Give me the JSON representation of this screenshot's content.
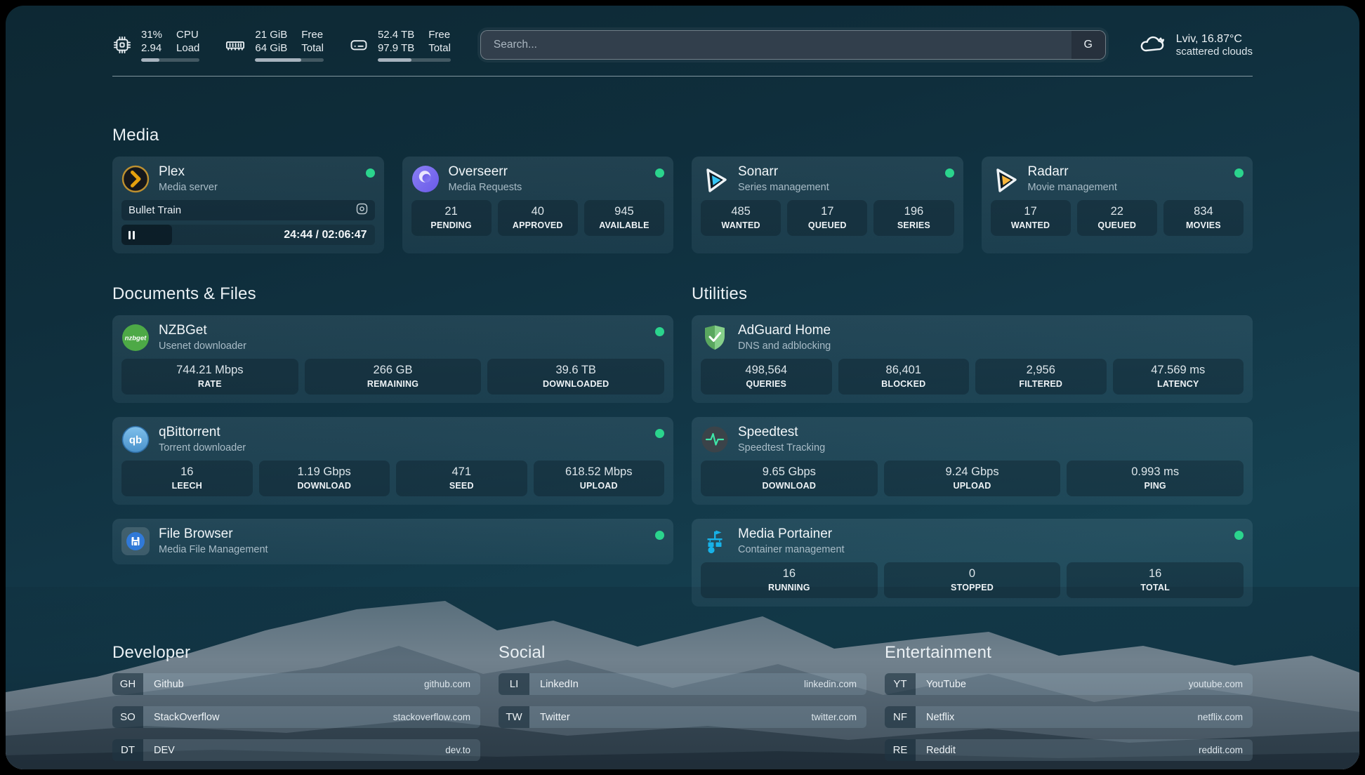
{
  "topbar": {
    "resources": [
      {
        "icon": "cpu-icon",
        "lines_a": [
          "31%",
          "2.94"
        ],
        "lines_b": [
          "CPU",
          "Load"
        ],
        "bar_percent": 31
      },
      {
        "icon": "memory-icon",
        "lines_a": [
          "21 GiB",
          "64 GiB"
        ],
        "lines_b": [
          "Free",
          "Total"
        ],
        "bar_percent": 67
      },
      {
        "icon": "disk-icon",
        "lines_a": [
          "52.4 TB",
          "97.9 TB"
        ],
        "lines_b": [
          "Free",
          "Total"
        ],
        "bar_percent": 46
      }
    ],
    "search": {
      "placeholder": "Search...",
      "provider_button": "G"
    },
    "weather": {
      "icon": "cloud-icon",
      "location": "Lviv, 16.87°C",
      "condition": "scattered clouds"
    }
  },
  "colors": {
    "status_online": "#2bd48d",
    "plex": "#e5a00d",
    "overseerr": "#7b6ef6",
    "sonarr": "#35c5f4",
    "radarr": "#f8b63c",
    "nzbget": "#4da946",
    "qbittorrent": "#5da9dd",
    "adguard": "#6cbc74",
    "speedtest": "#3ee6a8",
    "filebrowser": "#3079d8",
    "portainer": "#17b2e8"
  },
  "sections": {
    "media": {
      "title": "Media",
      "cards": [
        {
          "name": "Plex",
          "description": "Media server",
          "icon": "plex-icon",
          "status": "online",
          "now_playing": {
            "title": "Bullet Train",
            "time": "24:44 / 02:06:47",
            "progress_percent": 20
          }
        },
        {
          "name": "Overseerr",
          "description": "Media Requests",
          "icon": "overseerr-icon",
          "status": "online",
          "stats": [
            {
              "value": "21",
              "label": "PENDING"
            },
            {
              "value": "40",
              "label": "APPROVED"
            },
            {
              "value": "945",
              "label": "AVAILABLE"
            }
          ]
        },
        {
          "name": "Sonarr",
          "description": "Series management",
          "icon": "sonarr-icon",
          "status": "online",
          "stats": [
            {
              "value": "485",
              "label": "WANTED"
            },
            {
              "value": "17",
              "label": "QUEUED"
            },
            {
              "value": "196",
              "label": "SERIES"
            }
          ]
        },
        {
          "name": "Radarr",
          "description": "Movie management",
          "icon": "radarr-icon",
          "status": "online",
          "stats": [
            {
              "value": "17",
              "label": "WANTED"
            },
            {
              "value": "22",
              "label": "QUEUED"
            },
            {
              "value": "834",
              "label": "MOVIES"
            }
          ]
        }
      ]
    },
    "documents": {
      "title": "Documents & Files",
      "cards": [
        {
          "name": "NZBGet",
          "description": "Usenet downloader",
          "icon": "nzbget-icon",
          "status": "online",
          "stats": [
            {
              "value": "744.21 Mbps",
              "label": "RATE"
            },
            {
              "value": "266 GB",
              "label": "REMAINING"
            },
            {
              "value": "39.6 TB",
              "label": "DOWNLOADED"
            }
          ]
        },
        {
          "name": "qBittorrent",
          "description": "Torrent downloader",
          "icon": "qbittorrent-icon",
          "status": "online",
          "stats": [
            {
              "value": "16",
              "label": "LEECH"
            },
            {
              "value": "1.19 Gbps",
              "label": "DOWNLOAD"
            },
            {
              "value": "471",
              "label": "SEED"
            },
            {
              "value": "618.52 Mbps",
              "label": "UPLOAD"
            }
          ]
        },
        {
          "name": "File Browser",
          "description": "Media File Management",
          "icon": "filebrowser-icon",
          "status": "online",
          "stats": []
        }
      ]
    },
    "utilities": {
      "title": "Utilities",
      "cards": [
        {
          "name": "AdGuard Home",
          "description": "DNS and adblocking",
          "icon": "adguard-icon",
          "stats": [
            {
              "value": "498,564",
              "label": "QUERIES"
            },
            {
              "value": "86,401",
              "label": "BLOCKED"
            },
            {
              "value": "2,956",
              "label": "FILTERED"
            },
            {
              "value": "47.569 ms",
              "label": "LATENCY"
            }
          ]
        },
        {
          "name": "Speedtest",
          "description": "Speedtest Tracking",
          "icon": "speedtest-icon",
          "stats": [
            {
              "value": "9.65 Gbps",
              "label": "DOWNLOAD"
            },
            {
              "value": "9.24 Gbps",
              "label": "UPLOAD"
            },
            {
              "value": "0.993 ms",
              "label": "PING"
            }
          ]
        },
        {
          "name": "Media Portainer",
          "description": "Container management",
          "icon": "portainer-icon",
          "status": "online",
          "stats": [
            {
              "value": "16",
              "label": "RUNNING"
            },
            {
              "value": "0",
              "label": "STOPPED"
            },
            {
              "value": "16",
              "label": "TOTAL"
            }
          ]
        }
      ]
    },
    "bookmarks": [
      {
        "title": "Developer",
        "links": [
          {
            "abbr": "GH",
            "name": "Github",
            "domain": "github.com"
          },
          {
            "abbr": "SO",
            "name": "StackOverflow",
            "domain": "stackoverflow.com"
          },
          {
            "abbr": "DT",
            "name": "DEV",
            "domain": "dev.to"
          }
        ]
      },
      {
        "title": "Social",
        "links": [
          {
            "abbr": "LI",
            "name": "LinkedIn",
            "domain": "linkedin.com"
          },
          {
            "abbr": "TW",
            "name": "Twitter",
            "domain": "twitter.com"
          }
        ]
      },
      {
        "title": "Entertainment",
        "links": [
          {
            "abbr": "YT",
            "name": "YouTube",
            "domain": "youtube.com"
          },
          {
            "abbr": "NF",
            "name": "Netflix",
            "domain": "netflix.com"
          },
          {
            "abbr": "RE",
            "name": "Reddit",
            "domain": "reddit.com"
          }
        ]
      }
    ]
  }
}
